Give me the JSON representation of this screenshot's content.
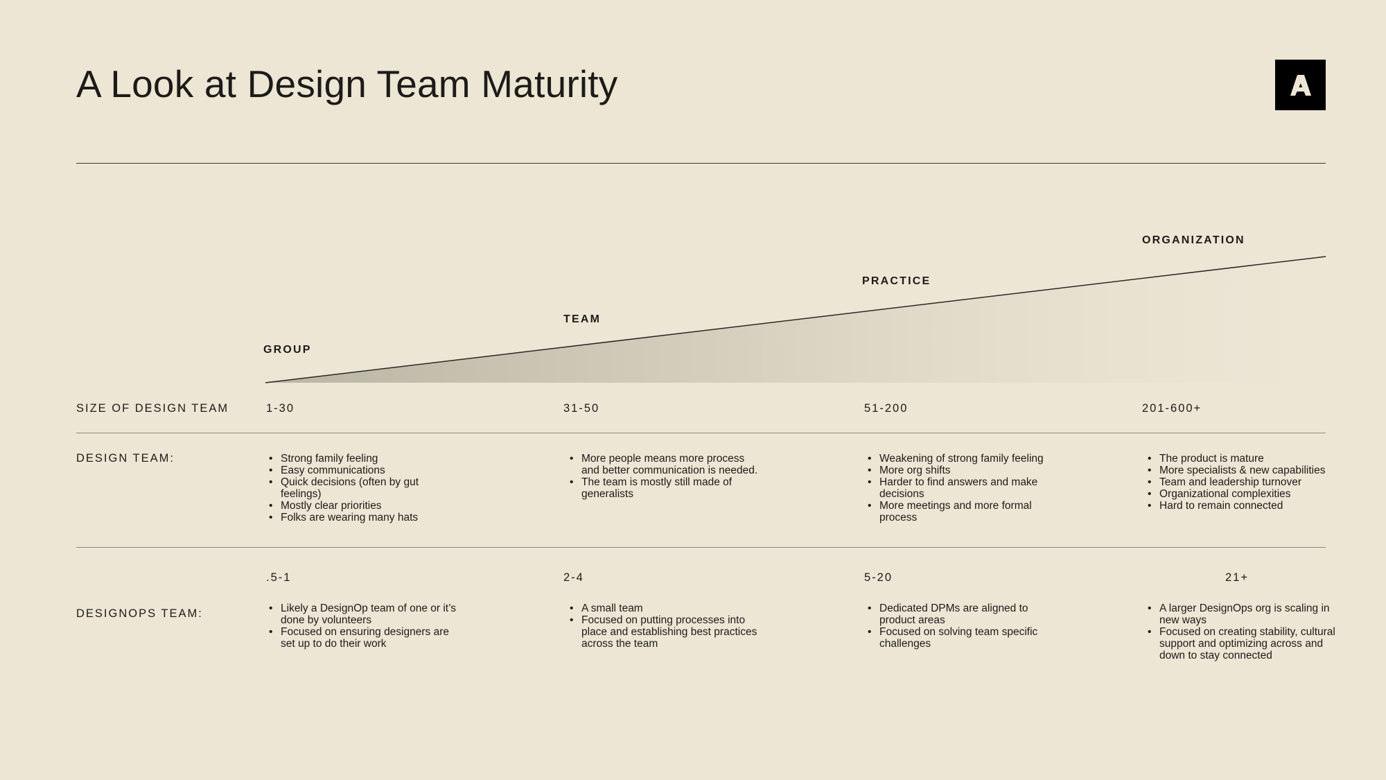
{
  "title": "A Look at Design Team Maturity",
  "logo": {
    "icon": "adobe-a-logo-icon"
  },
  "stages": [
    "GROUP",
    "TEAM",
    "PRACTICE",
    "ORGANIZATION"
  ],
  "size_row": {
    "label": "SIZE OF DESIGN TEAM",
    "values": [
      "1-30",
      "31-50",
      "51-200",
      "201-600+"
    ]
  },
  "design_row": {
    "label": "DESIGN TEAM:",
    "columns": [
      [
        "Strong family feeling",
        "Easy communications",
        "Quick decisions (often by gut feelings)",
        "Mostly clear priorities",
        "Folks are wearing many hats"
      ],
      [
        "More people means more process and better communication is needed.",
        "The team is mostly still made of generalists"
      ],
      [
        "Weakening of strong family feeling",
        "More org shifts",
        "Harder to find answers and make decisions",
        "More meetings and more formal process"
      ],
      [
        "The product is mature",
        "More specialists & new capabilities",
        "Team and leadership turnover",
        "Organizational complexities",
        "Hard to remain connected"
      ]
    ]
  },
  "ops_row": {
    "label": "DESIGNOPS TEAM:",
    "values": [
      ".5-1",
      "2-4",
      "5-20",
      "21+"
    ],
    "columns": [
      [
        "Likely a DesignOp team of one or it’s done by volunteers",
        "Focused on ensuring designers are set up to do their work"
      ],
      [
        "A small team",
        "Focused on putting processes into place and establishing best practices across the team"
      ],
      [
        "Dedicated DPMs are aligned to product areas",
        "Focused on solving team specific challenges"
      ],
      [
        "A larger DesignOps org is scaling in new ways",
        "Focused on creating stability, cultural support and optimizing across and down to stay connected"
      ]
    ]
  }
}
